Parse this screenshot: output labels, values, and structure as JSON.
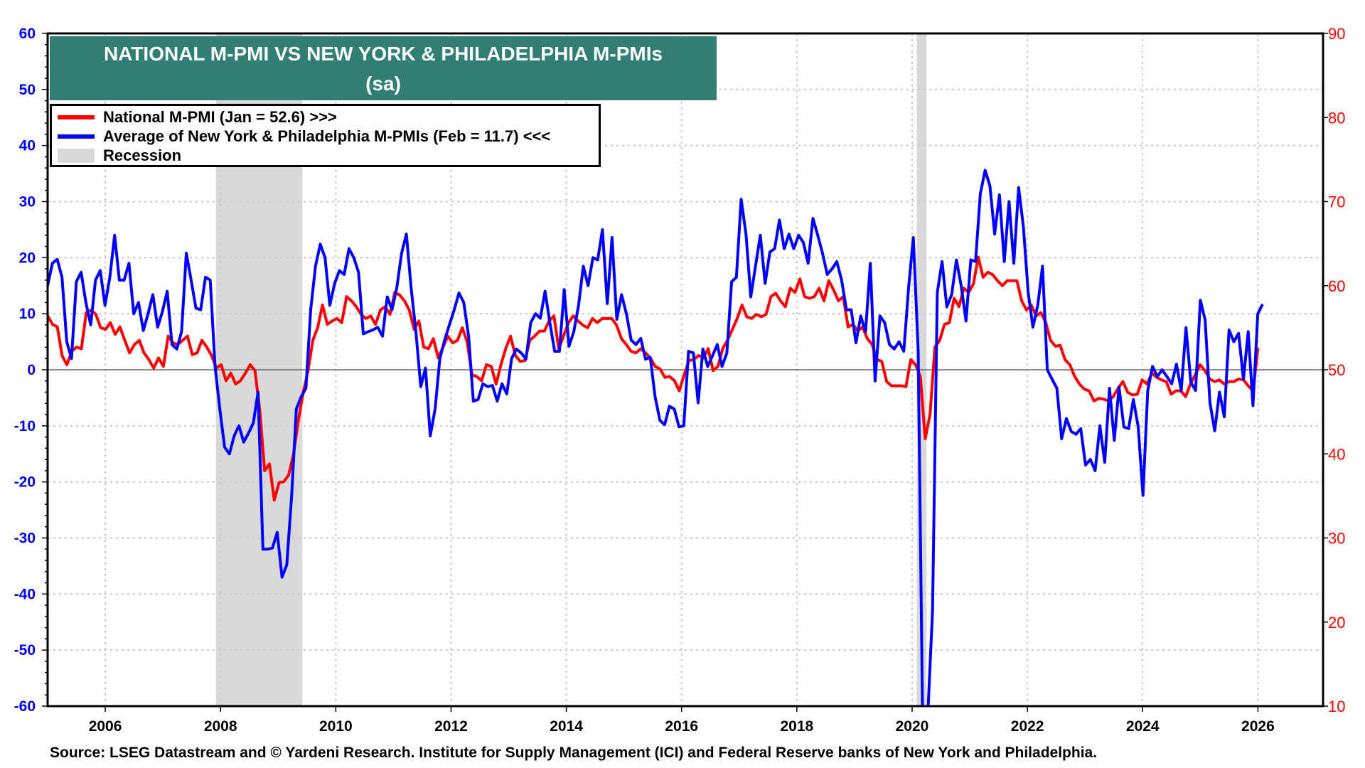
{
  "chart_data": {
    "type": "line",
    "title": "NATIONAL M-PMI VS NEW YORK & PHILADELPHIA M-PMIs",
    "subtitle": "(sa)",
    "xlim": [
      2005.0,
      2027.13
    ],
    "x_ticks": [
      "2006",
      "2008",
      "2010",
      "2012",
      "2014",
      "2016",
      "2018",
      "2020",
      "2022",
      "2024",
      "2026"
    ],
    "y_left": {
      "lim": [
        -60,
        60
      ],
      "ticks": [
        "60",
        "50",
        "40",
        "30",
        "20",
        "10",
        "0",
        "-10",
        "-20",
        "-30",
        "-40",
        "-50",
        "-60"
      ],
      "color": "#0000ff"
    },
    "y_right": {
      "lim": [
        10,
        90
      ],
      "ticks": [
        "90",
        "80",
        "70",
        "60",
        "50",
        "40",
        "30",
        "20",
        "10"
      ],
      "color": "#ff0000"
    },
    "grid": true,
    "legend_position": "top-left",
    "recessions": [
      [
        2007.92,
        2009.42
      ],
      [
        2020.08,
        2020.25
      ]
    ],
    "series": [
      {
        "name": "National M-PMI (Jan = 52.6) >>>",
        "axis": "right",
        "color": "#ff0000",
        "frequency": "monthly",
        "start": 2005.0,
        "end": 2026.0,
        "values": [
          56.4,
          55.4,
          55.1,
          51.7,
          50.6,
          52.2,
          52.7,
          52.5,
          56.8,
          57.1,
          56.6,
          55,
          54.8,
          55.6,
          54.2,
          55.1,
          53.5,
          52,
          53,
          53.5,
          52,
          51.2,
          50.2,
          51.4,
          50.4,
          54,
          53.2,
          53,
          53.5,
          54,
          51.8,
          52,
          53.5,
          52.7,
          51.7,
          50.2,
          50.6,
          48.7,
          49.6,
          48.3,
          48.7,
          49.6,
          50.6,
          49.9,
          45.2,
          38,
          38.8,
          34.5,
          36.6,
          36.7,
          37.5,
          40,
          44,
          47.3,
          49.9,
          53.5,
          55,
          57.7,
          55.4,
          55.8,
          56.1,
          55.6,
          58.7,
          58.2,
          57.5,
          56.6,
          56.1,
          56.4,
          55.4,
          57.1,
          57.5,
          56.6,
          59.2,
          58.9,
          58.2,
          57.1,
          54.8,
          55.8,
          52.7,
          52.5,
          53.7,
          51.4,
          52.7,
          54,
          53.2,
          53.5,
          55,
          53.3,
          49.4,
          49.2,
          48.7,
          50.6,
          50.4,
          48.3,
          50.6,
          52.5,
          54,
          51.7,
          51,
          51.1,
          53.5,
          54,
          54.6,
          54.6,
          55.8,
          56.4,
          52.5,
          54,
          55.6,
          56.4,
          55.8,
          55.3,
          55,
          56.1,
          55.6,
          56.1,
          56.1,
          56.1,
          55.3,
          53.7,
          53,
          52.2,
          52,
          52.5,
          52,
          51.4,
          50.4,
          50.1,
          49.1,
          49.2,
          48.7,
          47.5,
          49.4,
          51.1,
          51.2,
          51.7,
          51.4,
          52.5,
          49.9,
          50.4,
          52.5,
          53.5,
          54.8,
          56.1,
          57.7,
          56.3,
          56.1,
          56.6,
          56.3,
          56.6,
          58.7,
          59.1,
          58.2,
          57.5,
          59.7,
          59.2,
          60.8,
          58.7,
          58.5,
          58.7,
          59.7,
          58.2,
          60.6,
          59.5,
          58.2,
          58.7,
          55.1,
          55.4,
          54.6,
          55.1,
          53.7,
          53,
          51.2,
          51,
          48.6,
          48.1,
          48.1,
          48.1,
          48,
          51.2,
          50.6,
          49.2,
          41.8,
          44.7,
          52.7,
          53.5,
          55.4,
          55.6,
          58.5,
          57.5,
          59.7,
          59.2,
          60.2,
          63.4,
          61,
          61.6,
          61.3,
          60.6,
          60,
          60.6,
          60.6,
          60.6,
          58.2,
          57.1,
          57.7,
          56.4,
          56.8,
          55.6,
          53.5,
          52.8,
          52.9,
          51.2,
          50.6,
          49.2,
          48.3,
          47.7,
          47.5,
          46.3,
          46.6,
          46.5,
          46.3,
          46.8,
          47.8,
          48.6,
          47.3,
          47,
          47.1,
          48.8,
          48.3,
          49.6,
          49.1,
          48.8,
          48.6,
          47.1,
          47.5,
          47.5,
          46.8,
          48.3,
          49.4,
          50.6,
          49.9,
          48.9,
          48.6,
          48.8,
          48.3,
          48.6,
          48.6,
          48.9,
          48.8,
          48.1,
          47.5,
          52.6
        ]
      },
      {
        "name": "Average of New York & Philadelphia M-PMIs (Feb = 11.7) <<<",
        "axis": "left",
        "color": "#0000ff",
        "frequency": "monthly",
        "start": 2005.0,
        "end": 2026.08,
        "values": [
          15,
          19,
          19.7,
          16.5,
          5,
          2,
          15.7,
          17.4,
          12,
          8,
          16,
          17.7,
          11.5,
          16.5,
          24,
          16,
          16,
          19,
          10,
          12,
          7,
          10,
          13.4,
          7.6,
          10.4,
          14,
          4.5,
          3.7,
          6.8,
          20.8,
          16,
          11,
          10.7,
          16.5,
          16,
          0.6,
          -7,
          -13.8,
          -15,
          -11.8,
          -10,
          -12.9,
          -11.3,
          -9.5,
          -4,
          -32,
          -32,
          -31.8,
          -29,
          -37,
          -34.8,
          -22.7,
          -7,
          -4.8,
          -3.3,
          10.7,
          18.5,
          22.4,
          20,
          11.5,
          15.4,
          17.7,
          17,
          21.6,
          20,
          17.4,
          6.4,
          6.8,
          7.1,
          7.6,
          6,
          13,
          10.7,
          14.6,
          20.8,
          24.2,
          14.6,
          6.8,
          -3,
          0.3,
          -11.8,
          -7,
          2,
          5.3,
          8,
          10.7,
          13.7,
          12,
          6,
          -5.6,
          -5.3,
          -2.5,
          -3,
          -2.8,
          -5.6,
          -2.5,
          -4.3,
          2,
          3.7,
          3,
          1.9,
          8.4,
          10,
          9.2,
          14,
          8.4,
          3.3,
          3.3,
          14.3,
          4.2,
          6.8,
          11.5,
          18.5,
          15,
          20,
          19.6,
          25,
          11.8,
          23.6,
          9,
          13.4,
          10,
          5.3,
          4.5,
          5.6,
          1.9,
          2.2,
          -4.8,
          -9,
          -9.8,
          -6.5,
          -7,
          -10.2,
          -10,
          3.3,
          3,
          -5.9,
          3.7,
          0.6,
          2.5,
          4.5,
          0.6,
          3,
          15.7,
          16.5,
          30.4,
          24.2,
          13,
          18.5,
          24,
          15.4,
          21,
          21.6,
          26.7,
          21.6,
          24.2,
          21.6,
          24,
          22.7,
          19,
          27,
          24,
          20.8,
          17,
          18,
          19.3,
          16,
          10.7,
          10.7,
          4.8,
          9.6,
          6.8,
          19,
          -2,
          9.6,
          8.4,
          4.5,
          3.7,
          5,
          3.3,
          14.6,
          23.6,
          3.4,
          -67,
          -62,
          -43,
          13.8,
          19.3,
          11.2,
          13.4,
          19.6,
          15,
          8.7,
          19.6,
          19.3,
          31.4,
          35.6,
          32.8,
          24.2,
          31.2,
          19.3,
          30,
          19,
          32.5,
          25.5,
          13.8,
          7.6,
          11.5,
          18.5,
          0,
          -1.7,
          -3.3,
          -12.3,
          -8.7,
          -11,
          -11.5,
          -10.5,
          -17,
          -16,
          -18,
          -10,
          -16.5,
          -3.3,
          -12.6,
          -3.1,
          -10.2,
          -10.5,
          -5.3,
          -10.2,
          -22.4,
          -3.7,
          0.6,
          -1.2,
          0,
          -1.2,
          -2.5,
          1,
          -3.7,
          7.5,
          -2.2,
          -3.7,
          12.4,
          8.9,
          -5.9,
          -10.9,
          -4,
          -8.4,
          7.1,
          5,
          6.5,
          -1.7,
          6.8,
          -6.4,
          10,
          11.7
        ]
      }
    ],
    "legend": {
      "red": "National M-PMI (Jan = 52.6) >>>",
      "blue": "Average of New York & Philadelphia M-PMIs (Feb = 11.7) <<<",
      "recession": "Recession"
    },
    "source": "Source: LSEG Datastream and © Yardeni Research. Institute for Supply Management (ICI) and Federal Reserve banks of New York and Philadelphia."
  }
}
